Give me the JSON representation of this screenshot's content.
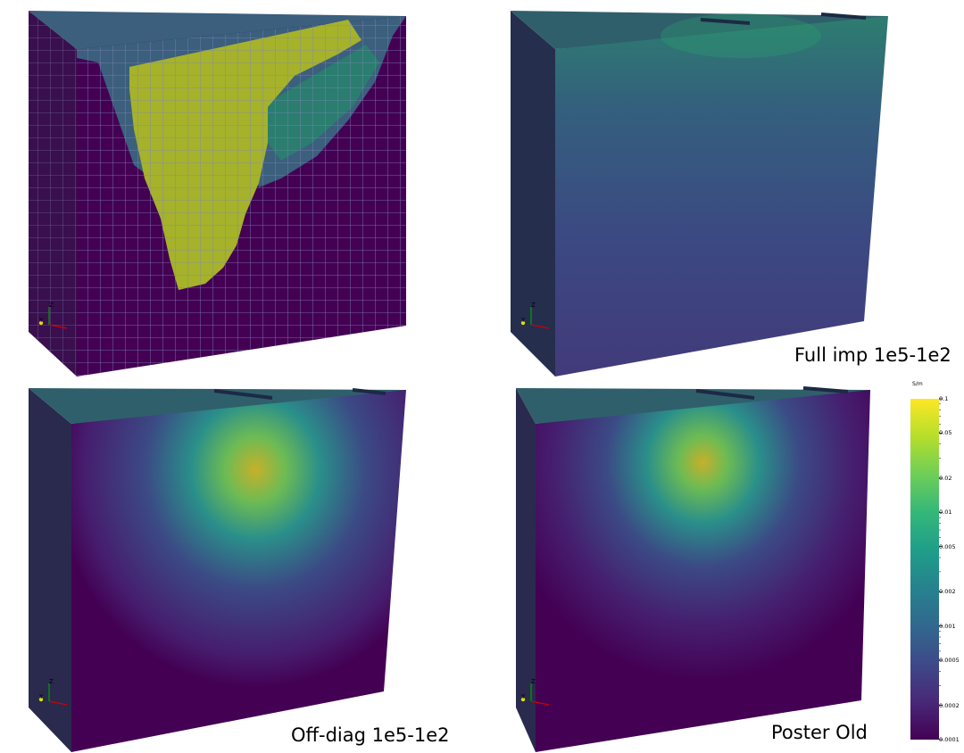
{
  "panels": [
    {
      "id": "mesh",
      "caption": "",
      "colors": {
        "dark": "#440154",
        "mid": "#31688e",
        "light": "#35b779",
        "bright": "#a5b22a"
      }
    },
    {
      "id": "full",
      "caption": "Full imp 1e5-1e2"
    },
    {
      "id": "offdiag",
      "caption": "Off-diag 1e5-1e2"
    },
    {
      "id": "poster",
      "caption": "Poster Old"
    }
  ],
  "axes_triad": {
    "z": "Z",
    "y": "Y",
    "x": "X"
  },
  "colorbar": {
    "title": "S/m",
    "scale": "log",
    "min": 0.0001,
    "max": 0.1,
    "ticks": [
      "0.1",
      "0.05",
      "0.02",
      "0.01",
      "0.005",
      "0.002",
      "0.001",
      "0.0005",
      "0.0002",
      "0.0001"
    ],
    "colormap": [
      "#440154",
      "#482878",
      "#3e4989",
      "#31688e",
      "#26828e",
      "#1f9e89",
      "#35b779",
      "#6ece58",
      "#b5de2b",
      "#fde725"
    ]
  }
}
